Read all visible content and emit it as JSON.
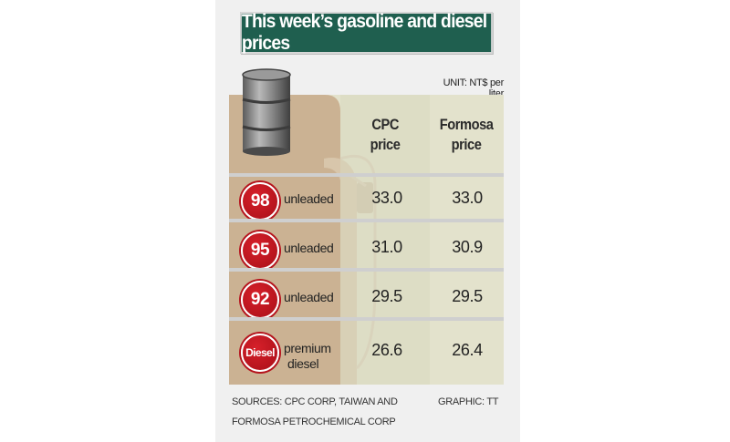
{
  "title": "This week’s gasoline and diesel prices",
  "unit": "UNIT: NT$ per liter",
  "columns": [
    "CPC price",
    "Formosa price"
  ],
  "column_lines": [
    [
      "CPC",
      "price"
    ],
    [
      "Formosa",
      "price"
    ]
  ],
  "icons": [
    "oil-barrel-icon",
    "fuel-nozzle-icon"
  ],
  "colors": {
    "title_bg": "#1f5f4f",
    "badge_red": "#c01822",
    "tan": "#cbb293",
    "panel": "#e3e2cc"
  },
  "chart_data": {
    "type": "table",
    "title": "This week’s gasoline and diesel prices",
    "unit": "NT$ per liter",
    "columns": [
      "CPC price",
      "Formosa price"
    ],
    "rows": [
      {
        "badge": "98",
        "grade": "unleaded",
        "values": [
          33.0,
          33.0
        ],
        "display": [
          "33.0",
          "33.0"
        ]
      },
      {
        "badge": "95",
        "grade": "unleaded",
        "values": [
          31.0,
          30.9
        ],
        "display": [
          "31.0",
          "30.9"
        ]
      },
      {
        "badge": "92",
        "grade": "unleaded",
        "values": [
          29.5,
          29.5
        ],
        "display": [
          "29.5",
          "29.5"
        ]
      },
      {
        "badge": "Diesel",
        "grade": "premium diesel",
        "grade_lines": [
          "premium",
          "diesel"
        ],
        "values": [
          26.6,
          26.4
        ],
        "display": [
          "26.6",
          "26.4"
        ]
      }
    ]
  },
  "footer": {
    "sources_line1": "SOURCES: CPC CORP, TAIWAN AND",
    "sources_line2": "FORMOSA PETROCHEMICAL CORP",
    "graphic": "GRAPHIC: TT"
  }
}
